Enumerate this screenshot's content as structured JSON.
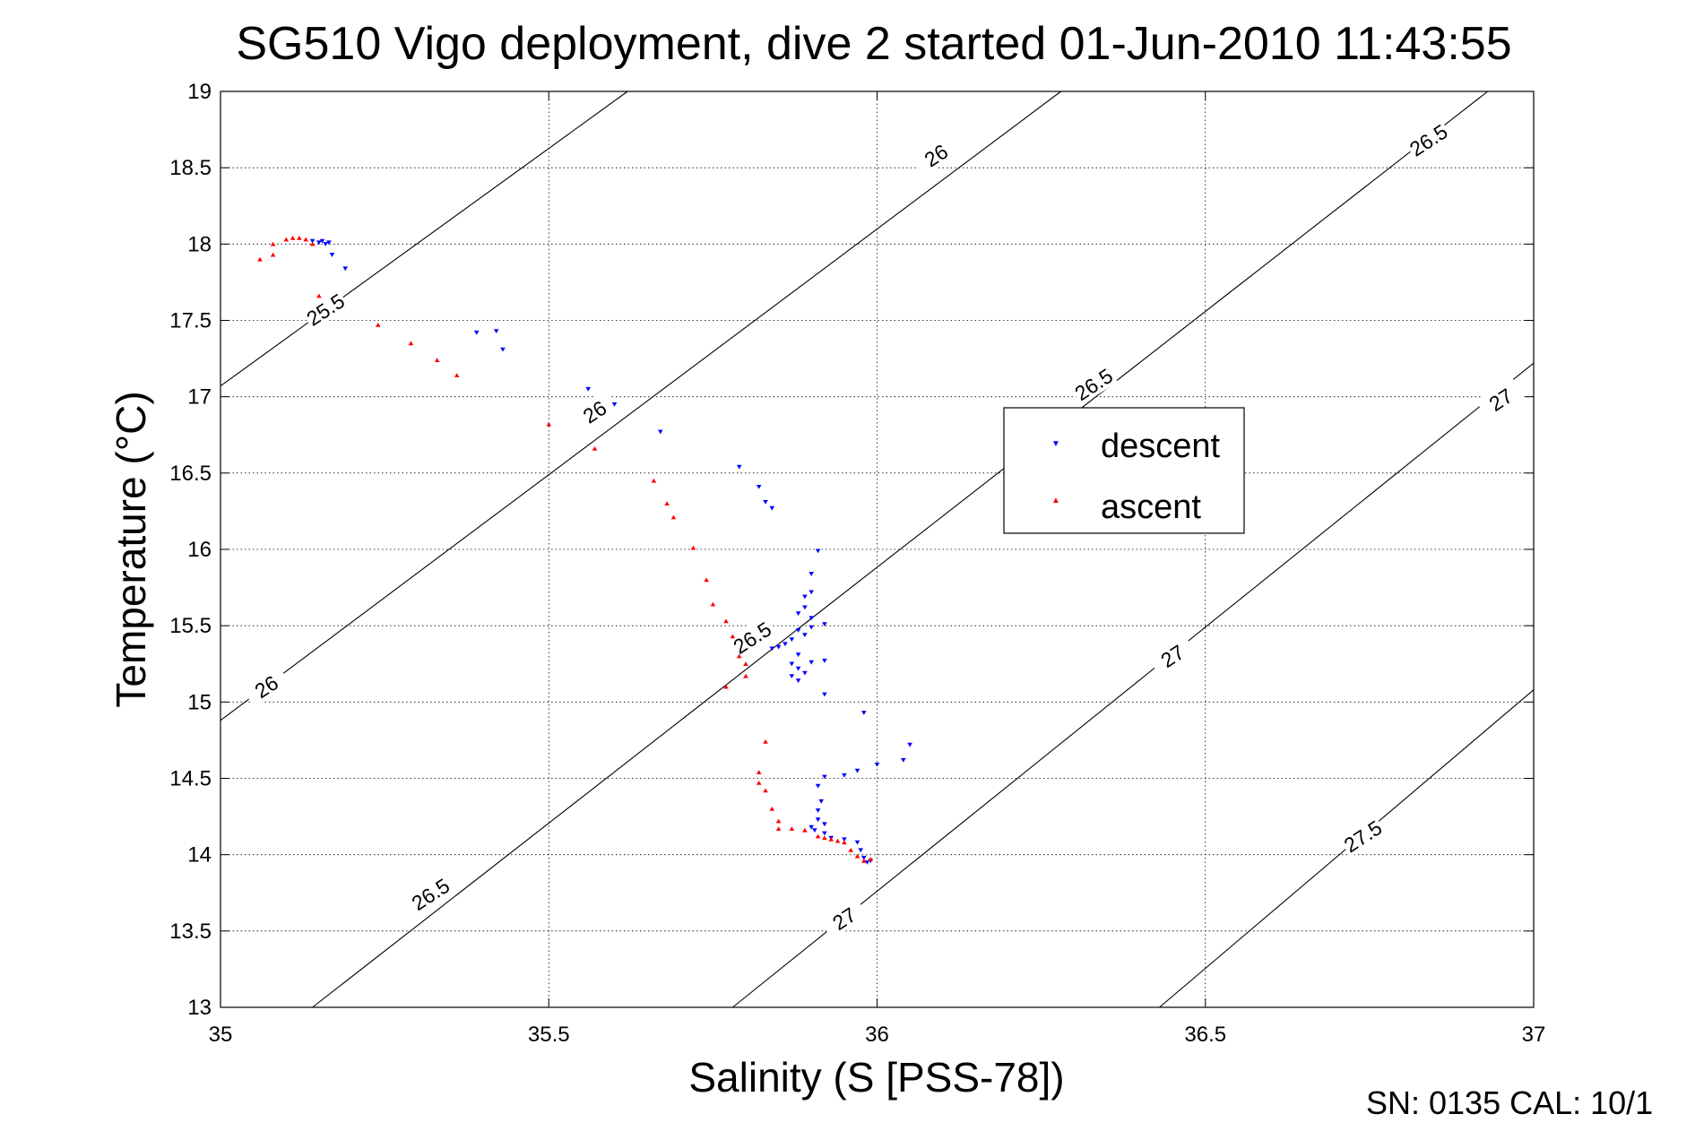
{
  "chart_data": {
    "type": "scatter",
    "title": "SG510 Vigo deployment, dive 2 started 01-Jun-2010 11:43:55",
    "xlabel": "Salinity (S [PSS-78])",
    "ylabel": "Temperature (°C)",
    "xlim": [
      35,
      37
    ],
    "ylim": [
      13,
      19
    ],
    "xticks": [
      35,
      35.5,
      36,
      36.5,
      37
    ],
    "xtick_labels": [
      "35",
      "35.5",
      "36",
      "36.5",
      "37"
    ],
    "yticks": [
      13,
      13.5,
      14,
      14.5,
      15,
      15.5,
      16,
      16.5,
      17,
      17.5,
      18,
      18.5,
      19
    ],
    "ytick_labels": [
      "13",
      "13.5",
      "14",
      "14.5",
      "15",
      "15.5",
      "16",
      "16.5",
      "17",
      "17.5",
      "18",
      "18.5",
      "19"
    ],
    "grid": true,
    "legend_position": "center-right",
    "series": [
      {
        "name": "descent",
        "marker": "triangle-down",
        "color": "#0000ff",
        "points": [
          [
            35.14,
            18.02
          ],
          [
            35.15,
            18.01
          ],
          [
            35.16,
            18.0
          ],
          [
            35.155,
            18.02
          ],
          [
            35.165,
            18.01
          ],
          [
            35.17,
            17.93
          ],
          [
            35.19,
            17.84
          ],
          [
            35.39,
            17.42
          ],
          [
            35.42,
            17.43
          ],
          [
            35.43,
            17.31
          ],
          [
            35.56,
            17.05
          ],
          [
            35.6,
            16.95
          ],
          [
            35.67,
            16.77
          ],
          [
            35.79,
            16.54
          ],
          [
            35.82,
            16.41
          ],
          [
            35.83,
            16.31
          ],
          [
            35.84,
            16.27
          ],
          [
            35.91,
            15.99
          ],
          [
            35.9,
            15.84
          ],
          [
            35.9,
            15.72
          ],
          [
            35.89,
            15.69
          ],
          [
            35.89,
            15.62
          ],
          [
            35.88,
            15.58
          ],
          [
            35.9,
            15.55
          ],
          [
            35.9,
            15.49
          ],
          [
            35.92,
            15.51
          ],
          [
            35.88,
            15.47
          ],
          [
            35.89,
            15.44
          ],
          [
            35.87,
            15.41
          ],
          [
            35.86,
            15.38
          ],
          [
            35.85,
            15.36
          ],
          [
            35.84,
            15.35
          ],
          [
            35.88,
            15.31
          ],
          [
            35.9,
            15.26
          ],
          [
            35.87,
            15.25
          ],
          [
            35.92,
            15.27
          ],
          [
            35.88,
            15.22
          ],
          [
            35.89,
            15.19
          ],
          [
            35.87,
            15.17
          ],
          [
            35.88,
            15.14
          ],
          [
            35.92,
            15.05
          ],
          [
            35.98,
            14.93
          ],
          [
            36.05,
            14.72
          ],
          [
            36.04,
            14.62
          ],
          [
            36.0,
            14.59
          ],
          [
            35.97,
            14.55
          ],
          [
            35.95,
            14.52
          ],
          [
            35.92,
            14.51
          ],
          [
            35.91,
            14.45
          ],
          [
            35.915,
            14.35
          ],
          [
            35.91,
            14.29
          ],
          [
            35.91,
            14.23
          ],
          [
            35.92,
            14.2
          ],
          [
            35.9,
            14.18
          ],
          [
            35.905,
            14.16
          ],
          [
            35.92,
            14.14
          ],
          [
            35.93,
            14.11
          ],
          [
            35.95,
            14.1
          ],
          [
            35.97,
            14.08
          ],
          [
            35.975,
            14.03
          ],
          [
            35.98,
            13.98
          ],
          [
            35.99,
            13.96
          ],
          [
            35.985,
            13.95
          ]
        ]
      },
      {
        "name": "ascent",
        "marker": "triangle-up",
        "color": "#ff0000",
        "points": [
          [
            35.06,
            17.9
          ],
          [
            35.08,
            17.93
          ],
          [
            35.08,
            18.0
          ],
          [
            35.1,
            18.03
          ],
          [
            35.11,
            18.04
          ],
          [
            35.12,
            18.04
          ],
          [
            35.13,
            18.03
          ],
          [
            35.14,
            18.0
          ],
          [
            35.15,
            17.66
          ],
          [
            35.24,
            17.47
          ],
          [
            35.29,
            17.35
          ],
          [
            35.33,
            17.24
          ],
          [
            35.36,
            17.14
          ],
          [
            35.5,
            16.82
          ],
          [
            35.57,
            16.66
          ],
          [
            35.66,
            16.45
          ],
          [
            35.68,
            16.3
          ],
          [
            35.69,
            16.21
          ],
          [
            35.72,
            16.01
          ],
          [
            35.74,
            15.8
          ],
          [
            35.75,
            15.64
          ],
          [
            35.77,
            15.53
          ],
          [
            35.78,
            15.43
          ],
          [
            35.79,
            15.3
          ],
          [
            35.8,
            15.25
          ],
          [
            35.8,
            15.17
          ],
          [
            35.77,
            15.1
          ],
          [
            35.83,
            14.74
          ],
          [
            35.82,
            14.54
          ],
          [
            35.82,
            14.47
          ],
          [
            35.83,
            14.42
          ],
          [
            35.84,
            14.3
          ],
          [
            35.85,
            14.22
          ],
          [
            35.85,
            14.17
          ],
          [
            35.87,
            14.17
          ],
          [
            35.89,
            14.16
          ],
          [
            35.91,
            14.12
          ],
          [
            35.92,
            14.11
          ],
          [
            35.93,
            14.1
          ],
          [
            35.94,
            14.09
          ],
          [
            35.95,
            14.08
          ],
          [
            35.96,
            14.03
          ],
          [
            35.97,
            13.99
          ],
          [
            35.98,
            13.96
          ],
          [
            35.99,
            13.97
          ]
        ]
      }
    ],
    "density_contours": [
      {
        "label": "25.5",
        "points": [
          [
            35.0,
            17.07
          ],
          [
            35.62,
            19.0
          ]
        ],
        "label_pos": [
          35.16,
          17.57
        ],
        "label_angle": -33
      },
      {
        "label": "26",
        "points": [
          [
            35.0,
            14.88
          ],
          [
            36.28,
            19.0
          ]
        ],
        "label_pos": [
          35.07,
          15.1
        ],
        "label_angle": -33
      },
      {
        "label": "26",
        "points": [
          [
            35.0,
            14.88
          ],
          [
            36.28,
            19.0
          ]
        ],
        "label_pos": [
          35.57,
          16.9
        ],
        "label_angle": -33
      },
      {
        "label": "26",
        "points": [
          [
            35.0,
            14.88
          ],
          [
            36.28,
            19.0
          ]
        ],
        "label_pos": [
          36.09,
          18.58
        ],
        "label_angle": -33
      },
      {
        "label": "26.5",
        "points": [
          [
            35.14,
            13.0
          ],
          [
            36.93,
            19.0
          ]
        ],
        "label_pos": [
          35.32,
          13.74
        ],
        "label_angle": -33
      },
      {
        "label": "26.5",
        "points": [
          [
            35.14,
            13.0
          ],
          [
            36.93,
            19.0
          ]
        ],
        "label_pos": [
          35.81,
          15.42
        ],
        "label_angle": -33
      },
      {
        "label": "26.5",
        "points": [
          [
            35.14,
            13.0
          ],
          [
            36.93,
            19.0
          ]
        ],
        "label_pos": [
          36.33,
          17.08
        ],
        "label_angle": -33
      },
      {
        "label": "26.5",
        "points": [
          [
            35.14,
            13.0
          ],
          [
            36.93,
            19.0
          ]
        ],
        "label_pos": [
          36.84,
          18.68
        ],
        "label_angle": -33
      },
      {
        "label": "27",
        "points": [
          [
            35.78,
            13.0
          ],
          [
            37.0,
            17.22
          ]
        ],
        "label_pos": [
          35.95,
          13.58
        ],
        "label_angle": -33
      },
      {
        "label": "27",
        "points": [
          [
            35.78,
            13.0
          ],
          [
            37.0,
            17.22
          ]
        ],
        "label_pos": [
          36.45,
          15.3
        ],
        "label_angle": -33
      },
      {
        "label": "27",
        "points": [
          [
            35.78,
            13.0
          ],
          [
            37.0,
            17.22
          ]
        ],
        "label_pos": [
          36.95,
          16.98
        ],
        "label_angle": -33
      },
      {
        "label": "27.5",
        "points": [
          [
            36.43,
            13.0
          ],
          [
            37.0,
            15.08
          ]
        ],
        "label_pos": [
          36.74,
          14.12
        ],
        "label_angle": -33
      }
    ]
  },
  "footer": {
    "serial_text": "SN: 0135  CAL: 10/1"
  }
}
